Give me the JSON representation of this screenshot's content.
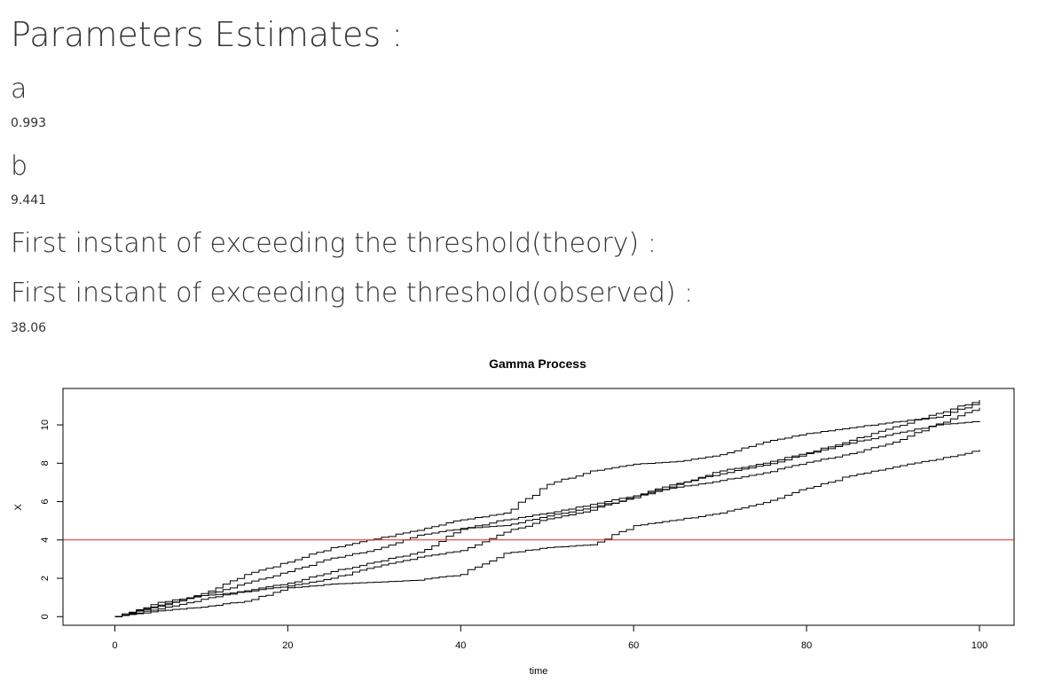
{
  "heading": "Parameters Estimates :",
  "params": {
    "a_label": "a",
    "a_value": "0.993",
    "b_label": "b",
    "b_value": "9.441"
  },
  "theory": {
    "label": "First instant of exceeding the threshold(theory) :"
  },
  "observed": {
    "label": "First instant of exceeding the threshold(observed) :",
    "value": "38.06"
  },
  "chart_data": {
    "type": "line",
    "title": "Gamma Process",
    "xlabel": "time",
    "ylabel": "X",
    "xlim": [
      -6,
      104
    ],
    "ylim": [
      -0.45,
      11.9
    ],
    "x_ticks": [
      0,
      20,
      40,
      60,
      80,
      100
    ],
    "y_ticks": [
      0,
      2,
      4,
      6,
      8,
      10
    ],
    "grid": false,
    "threshold": 4,
    "threshold_color": "#dd2222",
    "line_color": "#000000",
    "series": [
      {
        "x": [
          0,
          5,
          10,
          15,
          20,
          25,
          30,
          35,
          40,
          45,
          50,
          55,
          60,
          65,
          70,
          75,
          80,
          85,
          90,
          95,
          100
        ],
        "values": [
          0,
          0.55,
          1.1,
          1.75,
          2.35,
          3.05,
          3.5,
          4.25,
          4.6,
          4.75,
          5.25,
          5.7,
          6.2,
          6.9,
          7.6,
          8.0,
          8.55,
          9.2,
          9.9,
          10.6,
          11.3
        ]
      },
      {
        "x": [
          0,
          5,
          10,
          15,
          20,
          25,
          30,
          35,
          40,
          45,
          50,
          55,
          60,
          65,
          70,
          75,
          80,
          85,
          90,
          95,
          100
        ],
        "values": [
          0,
          0.6,
          1.2,
          2.2,
          2.85,
          3.6,
          4.05,
          4.5,
          5.05,
          5.4,
          6.9,
          7.6,
          7.95,
          8.1,
          8.45,
          9.1,
          9.55,
          9.85,
          10.15,
          10.4,
          11.2
        ]
      },
      {
        "x": [
          0,
          5,
          10,
          15,
          20,
          25,
          30,
          35,
          40,
          45,
          50,
          55,
          60,
          65,
          70,
          75,
          80,
          85,
          90,
          95,
          100
        ],
        "values": [
          0,
          0.4,
          0.9,
          1.35,
          1.75,
          2.35,
          2.85,
          3.35,
          4.55,
          5.05,
          5.4,
          5.85,
          6.3,
          6.75,
          7.1,
          7.5,
          8.05,
          8.5,
          9.1,
          10.05,
          10.9
        ]
      },
      {
        "x": [
          0,
          5,
          10,
          15,
          20,
          25,
          30,
          35,
          40,
          45,
          50,
          55,
          60,
          65,
          70,
          75,
          80,
          85,
          90,
          95,
          100
        ],
        "values": [
          0,
          0.75,
          1.1,
          1.3,
          1.6,
          2.0,
          2.6,
          3.1,
          3.45,
          4.4,
          5.1,
          5.55,
          6.3,
          6.95,
          7.45,
          7.9,
          8.5,
          9.05,
          9.55,
          10.0,
          10.2
        ]
      },
      {
        "x": [
          0,
          5,
          10,
          15,
          20,
          25,
          30,
          35,
          40,
          45,
          50,
          55,
          60,
          65,
          70,
          75,
          80,
          85,
          90,
          95,
          100
        ],
        "values": [
          0,
          0.3,
          0.5,
          0.8,
          1.5,
          1.7,
          1.8,
          1.9,
          2.2,
          3.3,
          3.6,
          3.75,
          4.75,
          5.05,
          5.4,
          5.95,
          6.7,
          7.35,
          7.8,
          8.2,
          8.7
        ]
      }
    ]
  }
}
